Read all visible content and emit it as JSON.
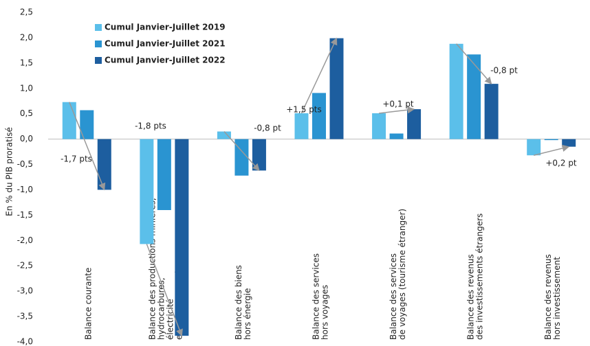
{
  "chart_data": {
    "type": "bar",
    "y_label": "En % du PIB proratisé",
    "categories": [
      [
        "Balance courante"
      ],
      [
        "Balance des productions minières,",
        "hydrocarbures,",
        "électricité",
        "et pétrole raffiné"
      ],
      [
        "Balance des biens",
        "hors énergie"
      ],
      [
        "Balance des services",
        "hors voyages"
      ],
      [
        "Balance des services",
        "de voyages (tourisme étranger)"
      ],
      [
        "Balance des revenus",
        "des investissements étrangers"
      ],
      [
        "Balance des revenus",
        "hors investissement"
      ]
    ],
    "series": [
      {
        "name": "Cumul Janvier-Juillet 2019",
        "color": "#5bbfea",
        "values": [
          0.73,
          -2.07,
          0.15,
          0.51,
          0.51,
          1.88,
          -0.32
        ]
      },
      {
        "name": "Cumul Janvier-Juillet 2021",
        "color": "#2a94d1",
        "values": [
          0.57,
          -1.4,
          -0.72,
          0.91,
          0.11,
          1.67,
          -0.02
        ]
      },
      {
        "name": "Cumul Janvier-Juillet 2022",
        "color": "#1d5e9f",
        "values": [
          -1.0,
          -3.88,
          -0.62,
          1.99,
          0.59,
          1.09,
          -0.15
        ]
      }
    ],
    "annotations": [
      {
        "text": "-1,7 pts",
        "color": "#c0392b"
      },
      {
        "text": "-1,8 pts",
        "color": "#c0392b"
      },
      {
        "text": "-0,8 pt",
        "color": "#c0392b"
      },
      {
        "text": "+1,5 pts",
        "color": "#3cb55a"
      },
      {
        "text": "+0,1 pt",
        "color": "#3cb55a"
      },
      {
        "text": "-0,8 pt",
        "color": "#c0392b"
      },
      {
        "text": "+0,2 pt",
        "color": "#3cb55a"
      }
    ],
    "ylim": [
      -4.0,
      2.5
    ],
    "yticks": [
      {
        "value": 2.5,
        "label": "2,5"
      },
      {
        "value": 2.0,
        "label": "2,0"
      },
      {
        "value": 1.5,
        "label": "1,5"
      },
      {
        "value": 1.0,
        "label": "1,0"
      },
      {
        "value": 0.5,
        "label": "0,5"
      },
      {
        "value": 0.0,
        "label": "0,0"
      },
      {
        "value": -0.5,
        "label": "-0,5"
      },
      {
        "value": -1.0,
        "label": "-1,0"
      },
      {
        "value": -1.5,
        "label": "-1,5"
      },
      {
        "value": -2.0,
        "label": "-2,0"
      },
      {
        "value": -2.5,
        "label": "-2,5"
      },
      {
        "value": -3.0,
        "label": "-3,0"
      },
      {
        "value": -3.5,
        "label": "-3,5"
      },
      {
        "value": -4.0,
        "label": "-4,0"
      }
    ],
    "grid": false
  }
}
